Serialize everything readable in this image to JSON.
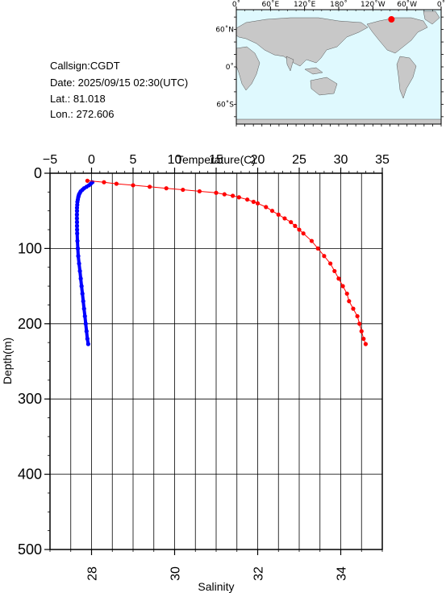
{
  "station": {
    "callsign_line": "Callsign:CGDT",
    "date_line": "Date:  2025/09/15 02:30(UTC)",
    "lat_line": "Lat.:  81.018",
    "lon_line": "Lon.:  272.606"
  },
  "map": {
    "top_labels": [
      "0˚",
      "60˚E",
      "120˚E",
      "180˚",
      "120˚W",
      "60˚W",
      "0˚"
    ],
    "left_labels": [
      "60˚N",
      "0˚",
      "60˚S"
    ],
    "ocean_color": "#dff9fe",
    "land_color": "#c8c8c8",
    "marker_color": "#ff0000",
    "station_lon": 272.606,
    "station_lat": 81.018
  },
  "chart_data": {
    "type": "line",
    "y_axis": {
      "label": "Depth(m)",
      "range": [
        0,
        500
      ],
      "inverted": true,
      "ticks": [
        "0",
        "100",
        "200",
        "300",
        "400",
        "500"
      ]
    },
    "x_top_axis": {
      "label": "Temperature(C)",
      "range": [
        -5,
        35
      ],
      "ticks": [
        "−5",
        "0",
        "5",
        "10",
        "15",
        "20",
        "25",
        "30",
        "35"
      ]
    },
    "x_bottom_axis": {
      "label": "Salinity",
      "range": [
        27,
        35
      ],
      "ticks": [
        "28",
        "30",
        "32",
        "34"
      ]
    },
    "grid": true,
    "series": [
      {
        "quantity": "Temperature",
        "axis": "top",
        "color": "#0000ff",
        "depth": [
          12,
          14,
          16,
          18,
          20,
          22,
          24,
          26,
          28,
          30,
          32,
          35,
          38,
          42,
          46,
          50,
          55,
          60,
          65,
          70,
          75,
          80,
          90,
          100,
          110,
          120,
          130,
          140,
          150,
          160,
          170,
          180,
          190,
          200,
          210,
          220,
          227
        ],
        "values": [
          0.1,
          -0.1,
          -0.3,
          -0.6,
          -0.9,
          -1.1,
          -1.3,
          -1.4,
          -1.5,
          -1.55,
          -1.6,
          -1.65,
          -1.7,
          -1.72,
          -1.75,
          -1.75,
          -1.76,
          -1.76,
          -1.75,
          -1.75,
          -1.74,
          -1.73,
          -1.7,
          -1.65,
          -1.6,
          -1.5,
          -1.4,
          -1.3,
          -1.2,
          -1.1,
          -1.0,
          -0.9,
          -0.8,
          -0.7,
          -0.6,
          -0.5,
          -0.4
        ]
      },
      {
        "quantity": "Salinity",
        "axis": "bottom",
        "color": "#ff0000",
        "depth": [
          10,
          12,
          14,
          16,
          18,
          20,
          22,
          24,
          26,
          28,
          30,
          32,
          35,
          38,
          40,
          45,
          50,
          55,
          60,
          65,
          70,
          75,
          80,
          90,
          100,
          110,
          120,
          130,
          140,
          150,
          160,
          170,
          180,
          190,
          200,
          210,
          220,
          227
        ],
        "values": [
          27.9,
          28.3,
          28.6,
          29.0,
          29.4,
          29.8,
          30.2,
          30.6,
          31.0,
          31.2,
          31.4,
          31.55,
          31.75,
          31.9,
          32.0,
          32.2,
          32.35,
          32.5,
          32.65,
          32.8,
          32.9,
          33.0,
          33.1,
          33.3,
          33.45,
          33.6,
          33.75,
          33.85,
          33.95,
          34.05,
          34.15,
          34.2,
          34.3,
          34.4,
          34.45,
          34.5,
          34.55,
          34.6
        ]
      }
    ]
  }
}
